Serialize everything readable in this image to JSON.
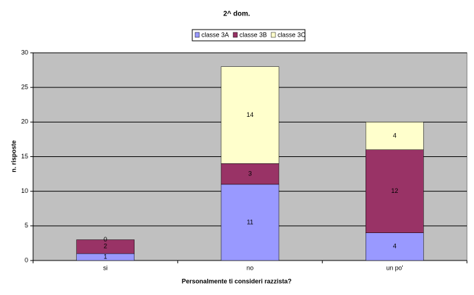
{
  "chart_data": {
    "type": "stacked-bar",
    "title": "2^ dom.",
    "x_label": "Personalmente ti consideri razzista?",
    "y_label": "n. risposte",
    "categories": [
      "si",
      "no",
      "un po'"
    ],
    "series": [
      {
        "name": "classe 3A",
        "color": "#9999ff",
        "values": [
          1,
          11,
          4
        ]
      },
      {
        "name": "classe 3B",
        "color": "#993366",
        "values": [
          2,
          3,
          12
        ]
      },
      {
        "name": "classe 3C",
        "color": "#ffffcc",
        "values": [
          0,
          14,
          4
        ]
      }
    ],
    "ylim": [
      0,
      30
    ],
    "yticks": [
      0,
      5,
      10,
      15,
      20,
      25,
      30
    ],
    "grid": true,
    "legend": "top"
  }
}
